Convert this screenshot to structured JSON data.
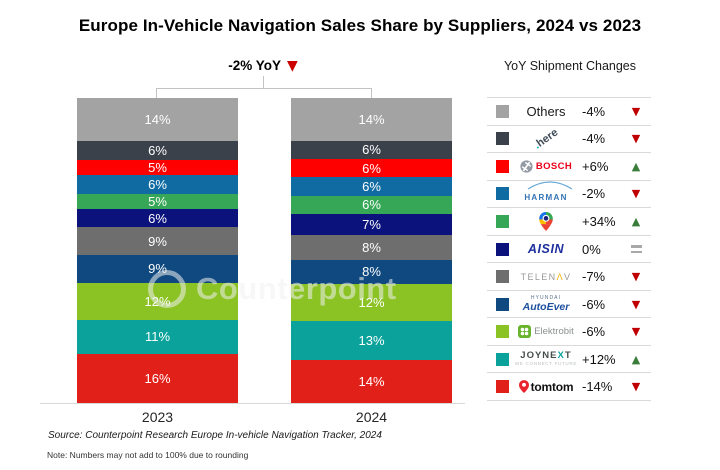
{
  "header": {
    "title": "Europe In-Vehicle Navigation Sales Share by Suppliers, 2024 vs 2023"
  },
  "annotation": {
    "label": "-2% YoY",
    "direction": "down"
  },
  "legend": {
    "title": "YoY Shipment Changes"
  },
  "watermark": {
    "text": "Counterpoint"
  },
  "footer": {
    "source": "Source: Counterpoint Research Europe In-vehicle Navigation Tracker, 2024",
    "note": "Note: Numbers may not add to 100% due to rounding"
  },
  "colors": {
    "trend_up": "#3a7d3a",
    "trend_down": "#c00000",
    "trend_flat": "#a8a8a8",
    "annotation_arrow": "#cc0000"
  },
  "chart_data": {
    "type": "bar",
    "stacked": true,
    "unit": "%",
    "title": "Europe In-Vehicle Navigation Sales Share by Suppliers, 2024 vs 2023",
    "categories": [
      "2023",
      "2024"
    ],
    "ylim": [
      0,
      100
    ],
    "grid": false,
    "legend_position": "right",
    "series": [
      {
        "id": "others",
        "name": "Others",
        "color": "#a3a3a3",
        "values": [
          14,
          14
        ],
        "yoy": "-4%",
        "trend": "down",
        "logo": {
          "text": "Others"
        }
      },
      {
        "id": "here",
        "name": "HERE",
        "color": "#3a414b",
        "values": [
          6,
          6
        ],
        "yoy": "-4%",
        "trend": "down",
        "logo": {
          "text": "here"
        }
      },
      {
        "id": "bosch",
        "name": "BOSCH",
        "color": "#fe0000",
        "values": [
          5,
          6
        ],
        "yoy": "+6%",
        "trend": "up",
        "logo": {
          "text": "BOSCH"
        }
      },
      {
        "id": "harman",
        "name": "HARMAN",
        "color": "#116ba3",
        "values": [
          6,
          6
        ],
        "yoy": "-2%",
        "trend": "down",
        "logo": {
          "text": "HARMAN"
        }
      },
      {
        "id": "google",
        "name": "Google Maps",
        "color": "#35a757",
        "values": [
          5,
          6
        ],
        "yoy": "+34%",
        "trend": "up",
        "logo": {
          "icon": "google-maps-pin"
        }
      },
      {
        "id": "aisin",
        "name": "AISIN",
        "color": "#0b127c",
        "values": [
          6,
          7
        ],
        "yoy": "0%",
        "trend": "flat",
        "logo": {
          "text": "AISIN"
        }
      },
      {
        "id": "telenav",
        "name": "TELENAV",
        "color": "#6e6e6e",
        "values": [
          9,
          8
        ],
        "yoy": "-7%",
        "trend": "down",
        "logo": {
          "pre": "TELEN",
          "accent": "Λ",
          "post": "V"
        }
      },
      {
        "id": "autoever",
        "name": "HYUNDAI AutoEver",
        "color": "#10497f",
        "values": [
          9,
          8
        ],
        "yoy": "-6%",
        "trend": "down",
        "logo": {
          "line1": "HYUNDAI",
          "line2": "AutoEver"
        }
      },
      {
        "id": "elektrobit",
        "name": "Elektrobit",
        "color": "#8bc224",
        "values": [
          12,
          12
        ],
        "yoy": "-6%",
        "trend": "down",
        "logo": {
          "text": "Elektrobit"
        }
      },
      {
        "id": "joynext",
        "name": "JOYNEXT",
        "color": "#0aa29b",
        "values": [
          11,
          13
        ],
        "yoy": "+12%",
        "trend": "up",
        "logo": {
          "pre": "JOYNE",
          "accent": "X",
          "post": "T",
          "tagline": "WE CONNECT FUTURE"
        }
      },
      {
        "id": "tomtom",
        "name": "TomTom",
        "color": "#e1201a",
        "values": [
          16,
          14
        ],
        "yoy": "-14%",
        "trend": "down",
        "logo": {
          "text": "tomtom"
        }
      }
    ]
  }
}
